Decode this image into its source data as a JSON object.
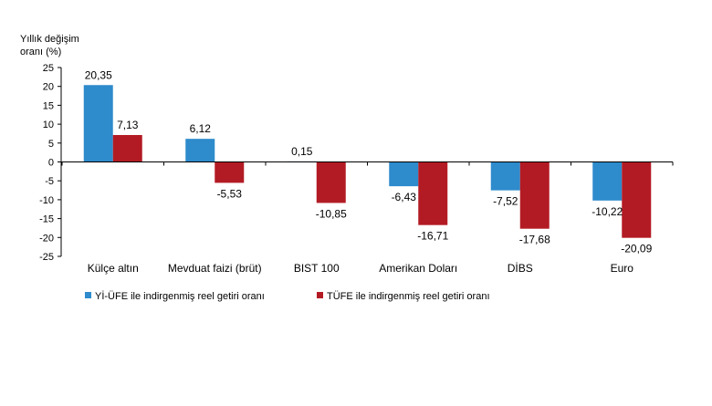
{
  "chart_data": {
    "type": "bar",
    "ylabel_lines": [
      "Yıllık değişim",
      "oranı (%)"
    ],
    "ylim": [
      -25,
      25
    ],
    "yticks": [
      25,
      20,
      15,
      10,
      5,
      0,
      -5,
      -10,
      -15,
      -20,
      -25
    ],
    "grid": false,
    "legend_position": "bottom",
    "categories": [
      "Külçe altın",
      "Mevduat faizi (brüt)",
      "BIST 100",
      "Amerikan Doları",
      "DİBS",
      "Euro"
    ],
    "series": [
      {
        "name": "Yİ-ÜFE ile indirgenmiş reel getiri oranı",
        "color": "#2E8BCC",
        "values": [
          20.35,
          6.12,
          0.15,
          -6.43,
          -7.52,
          -10.22
        ],
        "labels": [
          "20,35",
          "6,12",
          "0,15",
          "-6,43",
          "-7,52",
          "-10,22"
        ]
      },
      {
        "name": "TÜFE ile indirgenmiş reel getiri oranı",
        "color": "#B31B24",
        "values": [
          7.13,
          -5.53,
          -10.85,
          -16.71,
          -17.68,
          -20.09
        ],
        "labels": [
          "7,13",
          "-5,53",
          "-10,85",
          "-16,71",
          "-17,68",
          "-20,09"
        ]
      }
    ]
  }
}
